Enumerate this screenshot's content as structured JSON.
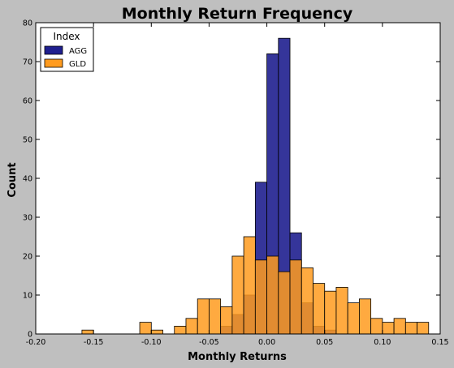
{
  "chart_data": {
    "type": "bar",
    "title": "Monthly Return Frequency",
    "xlabel": "Monthly Returns",
    "ylabel": "Count",
    "xlim": [
      -0.2,
      0.15
    ],
    "ylim": [
      0,
      80
    ],
    "xticks": [
      -0.2,
      -0.15,
      -0.1,
      -0.05,
      0.0,
      0.05,
      0.1,
      0.15
    ],
    "xtick_labels": [
      "-0.20",
      "-0.15",
      "-0.10",
      "-0.05",
      "0.00",
      "0.05",
      "0.10",
      "0.15"
    ],
    "yticks": [
      0,
      10,
      20,
      30,
      40,
      50,
      60,
      70,
      80
    ],
    "ytick_labels": [
      "0",
      "10",
      "20",
      "30",
      "40",
      "50",
      "60",
      "70",
      "80"
    ],
    "grid": false,
    "legend": {
      "title": "Index",
      "position": "top-left"
    },
    "series": [
      {
        "name": "AGG",
        "color": "#1f1f8f",
        "bins": [
          {
            "x0": -0.04,
            "x1": -0.03,
            "count": 2
          },
          {
            "x0": -0.03,
            "x1": -0.02,
            "count": 5
          },
          {
            "x0": -0.02,
            "x1": -0.01,
            "count": 10
          },
          {
            "x0": -0.01,
            "x1": 0.0,
            "count": 39
          },
          {
            "x0": 0.0,
            "x1": 0.01,
            "count": 72
          },
          {
            "x0": 0.01,
            "x1": 0.02,
            "count": 76
          },
          {
            "x0": 0.02,
            "x1": 0.03,
            "count": 26
          },
          {
            "x0": 0.03,
            "x1": 0.04,
            "count": 8
          },
          {
            "x0": 0.04,
            "x1": 0.05,
            "count": 2
          },
          {
            "x0": 0.05,
            "x1": 0.06,
            "count": 1
          }
        ]
      },
      {
        "name": "GLD",
        "color": "#ff9b1f",
        "bins": [
          {
            "x0": -0.16,
            "x1": -0.15,
            "count": 1
          },
          {
            "x0": -0.11,
            "x1": -0.1,
            "count": 3
          },
          {
            "x0": -0.1,
            "x1": -0.09,
            "count": 1
          },
          {
            "x0": -0.08,
            "x1": -0.07,
            "count": 2
          },
          {
            "x0": -0.07,
            "x1": -0.06,
            "count": 4
          },
          {
            "x0": -0.06,
            "x1": -0.05,
            "count": 9
          },
          {
            "x0": -0.05,
            "x1": -0.04,
            "count": 9
          },
          {
            "x0": -0.04,
            "x1": -0.03,
            "count": 7
          },
          {
            "x0": -0.03,
            "x1": -0.02,
            "count": 20
          },
          {
            "x0": -0.02,
            "x1": -0.01,
            "count": 25
          },
          {
            "x0": -0.01,
            "x1": 0.0,
            "count": 19
          },
          {
            "x0": 0.0,
            "x1": 0.01,
            "count": 20
          },
          {
            "x0": 0.01,
            "x1": 0.02,
            "count": 16
          },
          {
            "x0": 0.02,
            "x1": 0.03,
            "count": 19
          },
          {
            "x0": 0.03,
            "x1": 0.04,
            "count": 17
          },
          {
            "x0": 0.04,
            "x1": 0.05,
            "count": 13
          },
          {
            "x0": 0.05,
            "x1": 0.06,
            "count": 11
          },
          {
            "x0": 0.06,
            "x1": 0.07,
            "count": 12
          },
          {
            "x0": 0.07,
            "x1": 0.08,
            "count": 8
          },
          {
            "x0": 0.08,
            "x1": 0.09,
            "count": 9
          },
          {
            "x0": 0.09,
            "x1": 0.1,
            "count": 4
          },
          {
            "x0": 0.1,
            "x1": 0.11,
            "count": 3
          },
          {
            "x0": 0.11,
            "x1": 0.12,
            "count": 4
          },
          {
            "x0": 0.12,
            "x1": 0.13,
            "count": 3
          },
          {
            "x0": 0.13,
            "x1": 0.14,
            "count": 3
          }
        ]
      }
    ]
  }
}
